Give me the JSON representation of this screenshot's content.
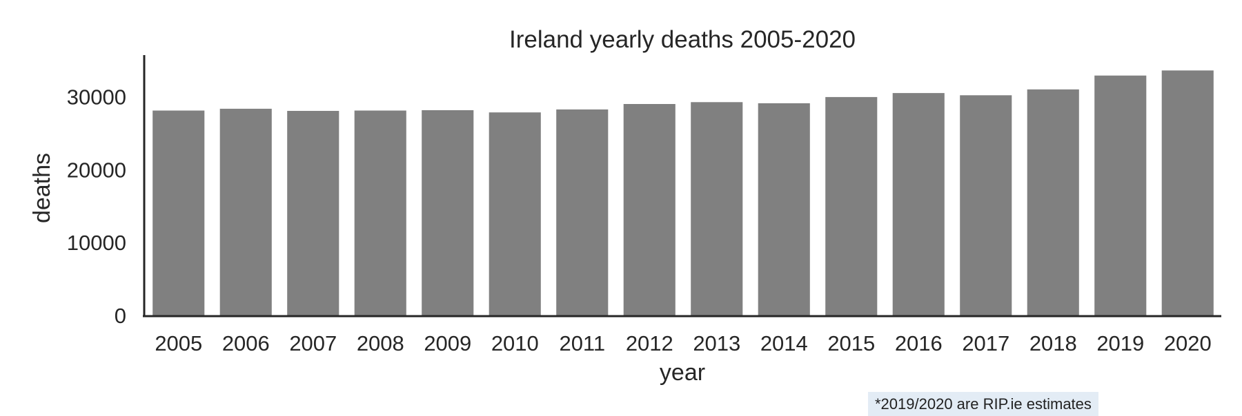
{
  "chart_data": {
    "type": "bar",
    "title": "Ireland yearly deaths 2005-2020",
    "xlabel": "year",
    "ylabel": "deaths",
    "categories": [
      "2005",
      "2006",
      "2007",
      "2008",
      "2009",
      "2010",
      "2011",
      "2012",
      "2013",
      "2014",
      "2015",
      "2016",
      "2017",
      "2018",
      "2019",
      "2020"
    ],
    "values": [
      28100,
      28350,
      28050,
      28100,
      28150,
      27850,
      28250,
      29000,
      29250,
      29100,
      29950,
      30500,
      30200,
      31000,
      32900,
      33600
    ],
    "ylim": [
      0,
      36000
    ],
    "yticks": [
      0,
      10000,
      20000,
      30000
    ],
    "grid": false,
    "bar_color": "#808080"
  },
  "annotation": "*2019/2020 are RIP.ie estimates"
}
